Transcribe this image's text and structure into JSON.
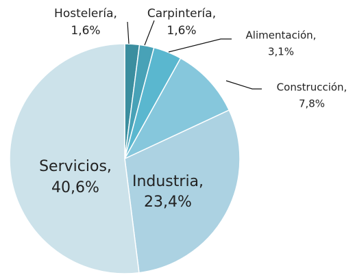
{
  "chart_data": {
    "type": "pie",
    "categories": [
      "Hostelería,",
      "Carpintería,",
      "Alimentación,",
      "Construcción,",
      "Industria,",
      "Servicios,"
    ],
    "values": [
      1.6,
      1.6,
      3.1,
      7.8,
      23.4,
      40.6
    ],
    "value_labels": [
      "1,6%",
      "1,6%",
      "3,1%",
      "7,8%",
      "23,4%",
      "40,6%"
    ],
    "colors": [
      "#3b8e9f",
      "#48a2b7",
      "#5ab7cf",
      "#86c7dc",
      "#acd2e2",
      "#cce2ea"
    ]
  }
}
